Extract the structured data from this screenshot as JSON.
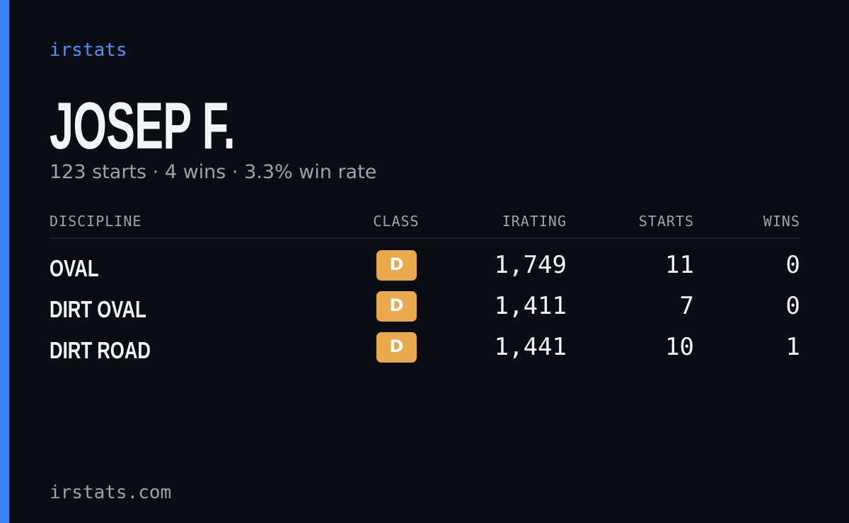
{
  "brand": "irstats",
  "profile": {
    "name": "JOSEP F.",
    "summary": "123 starts · 4 wins · 3.3% win rate"
  },
  "table": {
    "headers": [
      "DISCIPLINE",
      "CLASS",
      "IRATING",
      "STARTS",
      "WINS"
    ],
    "rows": [
      [
        "OVAL",
        "D",
        "1,749",
        "11",
        "0"
      ],
      [
        "DIRT OVAL",
        "D",
        "1,411",
        "7",
        "0"
      ],
      [
        "DIRT ROAD",
        "D",
        "1,441",
        "10",
        "1"
      ]
    ]
  },
  "footer": "irstats.com"
}
